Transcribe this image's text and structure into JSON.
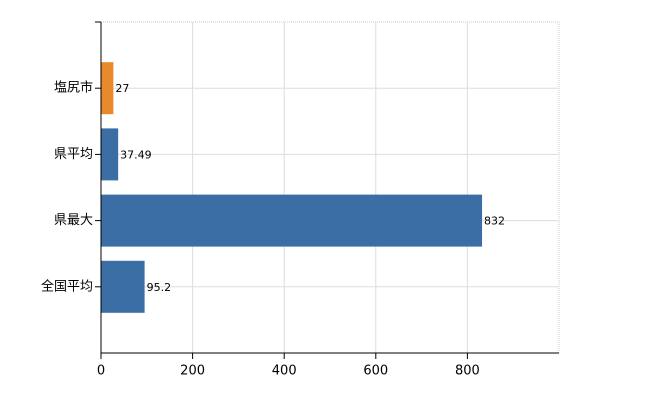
{
  "chart_data": {
    "type": "hbar",
    "categories": [
      "塩尻市",
      "県平均",
      "県最大",
      "全国平均"
    ],
    "values": [
      27,
      37.49,
      832,
      95.2
    ],
    "colors": [
      "#e8892b",
      "#3a6ea5",
      "#3a6ea5",
      "#3a6ea5"
    ],
    "xlim": [
      0,
      1000
    ],
    "xticks": [
      0,
      200,
      400,
      600,
      800
    ],
    "grid": true
  }
}
